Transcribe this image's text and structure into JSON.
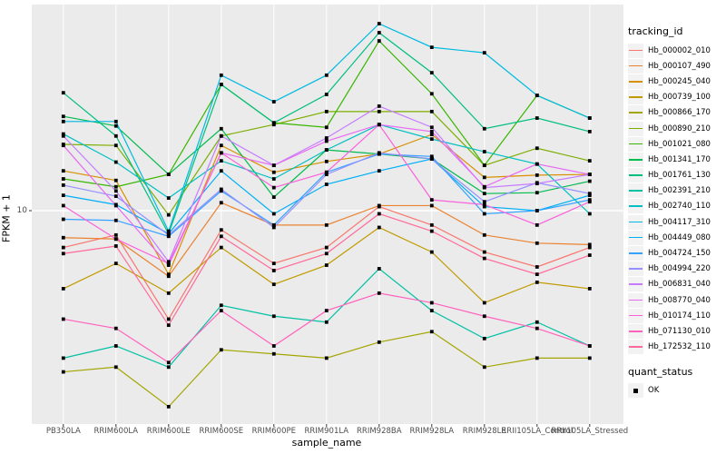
{
  "figure": {
    "panel_bg": "#EBEBEB",
    "gridline_color": "#FFFFFF",
    "tick_color": "#333333",
    "tick_text_color": "#4D4D4D",
    "point_color": "#000000",
    "x_axis_label": "sample_name",
    "y_axis_label": "FPKM + 1",
    "y_tick_label": "10"
  },
  "legend": {
    "title": "tracking_id",
    "quant_title": "quant_status",
    "quant_ok_label": "OK"
  },
  "chart_data": {
    "type": "line",
    "y_scale": "log10",
    "ylabel": "FPKM + 1",
    "xlabel": "sample_name",
    "y_breaks": [
      10
    ],
    "ylim_approx": [
      1.3,
      75
    ],
    "grid": "major",
    "legend_position": "right",
    "point_shape": "filled-square",
    "quant_status": "OK",
    "categories": [
      "PB350LA",
      "RRIM600LA",
      "RRIM600LE",
      "RRIM600SE",
      "RRIM600PE",
      "RRIM901LA",
      "RRIM928BA",
      "RRIM928LA",
      "RRIM928LE",
      "RRII105LA_Control",
      "RRII105LA_Stressed"
    ],
    "series": [
      {
        "name": "Hb_000002_010",
        "color": "#F8766D",
        "values": [
          7.0,
          7.9,
          3.5,
          8.3,
          6.0,
          7.0,
          10.4,
          8.7,
          6.7,
          5.8,
          7.0
        ]
      },
      {
        "name": "Hb_000107_490",
        "color": "#EA8331",
        "values": [
          7.7,
          7.6,
          5.3,
          10.8,
          8.7,
          8.7,
          10.5,
          10.5,
          7.9,
          7.3,
          7.2
        ]
      },
      {
        "name": "Hb_000245_040",
        "color": "#D89000",
        "values": [
          14.7,
          13.4,
          5.4,
          18.8,
          14.5,
          16.1,
          17.3,
          20.9,
          13.8,
          14.1,
          14.2
        ]
      },
      {
        "name": "Hb_000739_100",
        "color": "#C09B00",
        "values": [
          4.7,
          6.0,
          4.5,
          7.0,
          4.9,
          5.9,
          8.5,
          6.7,
          4.1,
          5.0,
          4.7
        ]
      },
      {
        "name": "Hb_000866_170",
        "color": "#A3A500",
        "values": [
          2.1,
          2.2,
          1.5,
          2.6,
          2.5,
          2.4,
          2.8,
          3.1,
          2.2,
          2.4,
          2.4
        ]
      },
      {
        "name": "Hb_000890_210",
        "color": "#7CAE00",
        "values": [
          19.0,
          18.8,
          9.6,
          20.6,
          23.0,
          26.1,
          26.1,
          26.1,
          15.5,
          18.3,
          16.2
        ]
      },
      {
        "name": "Hb_001021_080",
        "color": "#39B600",
        "values": [
          13.6,
          12.6,
          14.2,
          33.9,
          23.4,
          22.4,
          51.7,
          31.0,
          15.5,
          30.5,
          24.5
        ]
      },
      {
        "name": "Hb_001341_170",
        "color": "#00BB4E",
        "values": [
          24.9,
          22.7,
          14.2,
          22.1,
          11.4,
          18.0,
          17.3,
          16.5,
          11.8,
          11.9,
          13.3
        ]
      },
      {
        "name": "Hb_001761_130",
        "color": "#00BF7D",
        "values": [
          31.3,
          20.6,
          8.0,
          33.9,
          23.4,
          30.8,
          56.0,
          38.0,
          22.1,
          24.5,
          21.5
        ]
      },
      {
        "name": "Hb_002391_210",
        "color": "#00C1A3",
        "values": [
          2.4,
          2.7,
          2.2,
          4.0,
          3.6,
          3.4,
          5.7,
          3.8,
          2.9,
          3.4,
          2.7
        ]
      },
      {
        "name": "Hb_002740_110",
        "color": "#00BFC4",
        "values": [
          21.0,
          16.0,
          11.3,
          16.2,
          13.6,
          18.0,
          23.0,
          20.0,
          17.7,
          15.7,
          9.7
        ]
      },
      {
        "name": "Hb_004117_310",
        "color": "#00BAE0",
        "values": [
          23.7,
          23.7,
          8.2,
          37.1,
          28.7,
          37.1,
          61.1,
          48.6,
          46.1,
          30.5,
          24.5
        ]
      },
      {
        "name": "Hb_004449_080",
        "color": "#00B0F6",
        "values": [
          11.6,
          10.6,
          8.0,
          14.7,
          9.7,
          12.9,
          14.7,
          16.5,
          10.4,
          10.0,
          11.6
        ]
      },
      {
        "name": "Hb_004724_150",
        "color": "#35A2FF",
        "values": [
          9.2,
          9.1,
          7.8,
          12.1,
          8.7,
          14.5,
          17.3,
          16.9,
          9.7,
          10.0,
          11.1
        ]
      },
      {
        "name": "Hb_004994_220",
        "color": "#9590FF",
        "values": [
          12.8,
          11.5,
          7.9,
          12.3,
          8.5,
          14.2,
          17.5,
          16.5,
          10.9,
          13.1,
          11.8
        ]
      },
      {
        "name": "Hb_006831_040",
        "color": "#C77CFF",
        "values": [
          20.6,
          12.1,
          6.1,
          20.6,
          15.5,
          20.2,
          27.5,
          22.4,
          12.5,
          13.0,
          14.2
        ]
      },
      {
        "name": "Hb_008770_040",
        "color": "#E76BF3",
        "values": [
          18.8,
          10.5,
          5.9,
          17.5,
          15.5,
          19.6,
          23.0,
          21.5,
          12.6,
          15.7,
          14.2
        ]
      },
      {
        "name": "Hb_010174_110",
        "color": "#FA62DB",
        "values": [
          10.5,
          7.6,
          6.0,
          17.5,
          12.5,
          14.5,
          23.0,
          11.1,
          10.6,
          8.7,
          10.9
        ]
      },
      {
        "name": "Hb_071130_010",
        "color": "#FF62BC",
        "values": [
          3.5,
          3.2,
          2.3,
          3.8,
          2.7,
          3.8,
          4.5,
          4.1,
          3.6,
          3.2,
          2.7
        ]
      },
      {
        "name": "Hb_172532_110",
        "color": "#FF6A98",
        "values": [
          6.6,
          7.1,
          3.3,
          7.8,
          5.6,
          6.6,
          9.7,
          8.2,
          6.3,
          5.4,
          6.5
        ]
      }
    ]
  }
}
